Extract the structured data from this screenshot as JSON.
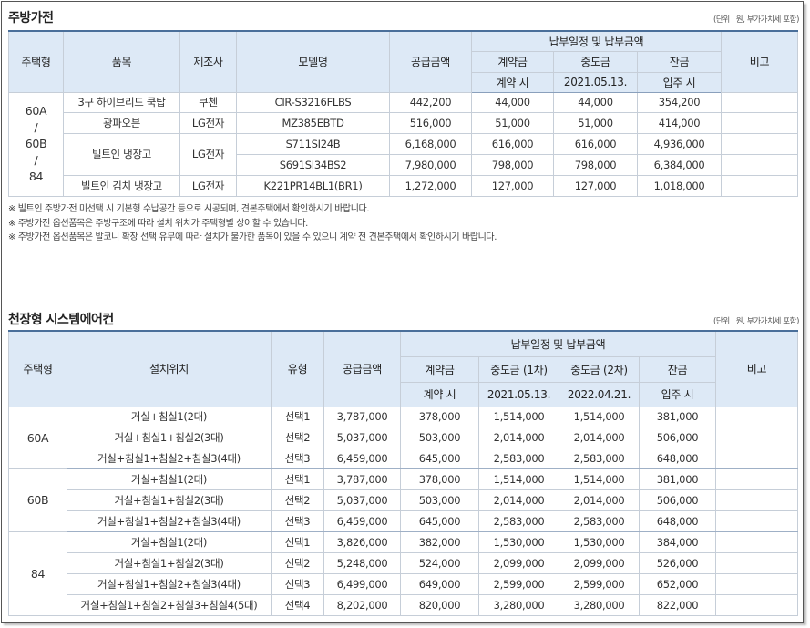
{
  "kitchen": {
    "title": "주방가전",
    "unit": "(단위 : 원, 부가가치세 포함)",
    "headers": {
      "house_type": "주택형",
      "item": "품목",
      "maker": "제조사",
      "model": "모델명",
      "supply": "공급금액",
      "schedule": "납부일정 및 납부금액",
      "deposit": "계약금",
      "middle": "중도금",
      "balance": "잔금",
      "deposit_when": "계약 시",
      "middle_when": "2021.05.13.",
      "balance_when": "입주 시",
      "remark": "비고"
    },
    "house_type_label": "60A\n/\n60B\n/\n84",
    "rows": [
      {
        "item": "3구 하이브리드 쿡탑",
        "maker": "쿠첸",
        "model": "CIR-S3216FLBS",
        "supply": "442,200",
        "deposit": "44,000",
        "middle": "44,000",
        "balance": "354,200",
        "remark": ""
      },
      {
        "item": "광파오븐",
        "maker": "LG전자",
        "model": "MZ385EBTD",
        "supply": "516,000",
        "deposit": "51,000",
        "middle": "51,000",
        "balance": "414,000",
        "remark": ""
      },
      {
        "item": "빌트인 냉장고",
        "maker": "LG전자",
        "model": "S711SI24B",
        "supply": "6,168,000",
        "deposit": "616,000",
        "middle": "616,000",
        "balance": "4,936,000",
        "remark": ""
      },
      {
        "item": "",
        "maker": "",
        "model": "S691SI34BS2",
        "supply": "7,980,000",
        "deposit": "798,000",
        "middle": "798,000",
        "balance": "6,384,000",
        "remark": ""
      },
      {
        "item": "빌트인 김치 냉장고",
        "maker": "LG전자",
        "model": "K221PR14BL1(BR1)",
        "supply": "1,272,000",
        "deposit": "127,000",
        "middle": "127,000",
        "balance": "1,018,000",
        "remark": ""
      }
    ],
    "notes": [
      "※ 빌트인 주방가전 미선택 시 기본형 수납공간 등으로 시공되며, 견본주택에서 확인하시기 바랍니다.",
      "※ 주방가전 옵션품목은 주방구조에 따라 설치 위치가 주택형별 상이할 수 있습니다.",
      "※ 주방가전 옵션품목은 발코니 확장 선택 유무에 따라 설치가 불가한 품목이 있을 수 있으니 계약 전 견본주택에서 확인하시기 바랍니다."
    ]
  },
  "aircon": {
    "title": "천장형 시스템에어컨",
    "unit": "(단위 : 원, 부가가치세 포함)",
    "headers": {
      "house_type": "주택형",
      "location": "설치위치",
      "type": "유형",
      "supply": "공급금액",
      "schedule": "납부일정 및 납부금액",
      "deposit": "계약금",
      "middle1": "중도금 (1차)",
      "middle2": "중도금 (2차)",
      "balance": "잔금",
      "deposit_when": "계약 시",
      "middle1_when": "2021.05.13.",
      "middle2_when": "2022.04.21.",
      "balance_when": "입주 시",
      "remark": "비고"
    },
    "groups": [
      {
        "house_type": "60A",
        "rows": [
          {
            "location": "거실+침실1(2대)",
            "type": "선택1",
            "supply": "3,787,000",
            "deposit": "378,000",
            "middle1": "1,514,000",
            "middle2": "1,514,000",
            "balance": "381,000"
          },
          {
            "location": "거실+침실1+침실2(3대)",
            "type": "선택2",
            "supply": "5,037,000",
            "deposit": "503,000",
            "middle1": "2,014,000",
            "middle2": "2,014,000",
            "balance": "506,000"
          },
          {
            "location": "거실+침실1+침실2+침실3(4대)",
            "type": "선택3",
            "supply": "6,459,000",
            "deposit": "645,000",
            "middle1": "2,583,000",
            "middle2": "2,583,000",
            "balance": "648,000"
          }
        ]
      },
      {
        "house_type": "60B",
        "rows": [
          {
            "location": "거실+침실1(2대)",
            "type": "선택1",
            "supply": "3,787,000",
            "deposit": "378,000",
            "middle1": "1,514,000",
            "middle2": "1,514,000",
            "balance": "381,000"
          },
          {
            "location": "거실+침실1+침실2(3대)",
            "type": "선택2",
            "supply": "5,037,000",
            "deposit": "503,000",
            "middle1": "2,014,000",
            "middle2": "2,014,000",
            "balance": "506,000"
          },
          {
            "location": "거실+침실1+침실2+침실3(4대)",
            "type": "선택3",
            "supply": "6,459,000",
            "deposit": "645,000",
            "middle1": "2,583,000",
            "middle2": "2,583,000",
            "balance": "648,000"
          }
        ]
      },
      {
        "house_type": "84",
        "rows": [
          {
            "location": "거실+침실1(2대)",
            "type": "선택1",
            "supply": "3,826,000",
            "deposit": "382,000",
            "middle1": "1,530,000",
            "middle2": "1,530,000",
            "balance": "384,000"
          },
          {
            "location": "거실+침실1+침실2(3대)",
            "type": "선택2",
            "supply": "5,248,000",
            "deposit": "524,000",
            "middle1": "2,099,000",
            "middle2": "2,099,000",
            "balance": "526,000"
          },
          {
            "location": "거실+침실1+침실2+침실3(4대)",
            "type": "선택3",
            "supply": "6,499,000",
            "deposit": "649,000",
            "middle1": "2,599,000",
            "middle2": "2,599,000",
            "balance": "652,000"
          },
          {
            "location": "거실+침실1+침실2+침실3+침실4(5대)",
            "type": "선택4",
            "supply": "8,202,000",
            "deposit": "820,000",
            "middle1": "3,280,000",
            "middle2": "3,280,000",
            "balance": "822,000"
          }
        ]
      }
    ]
  }
}
